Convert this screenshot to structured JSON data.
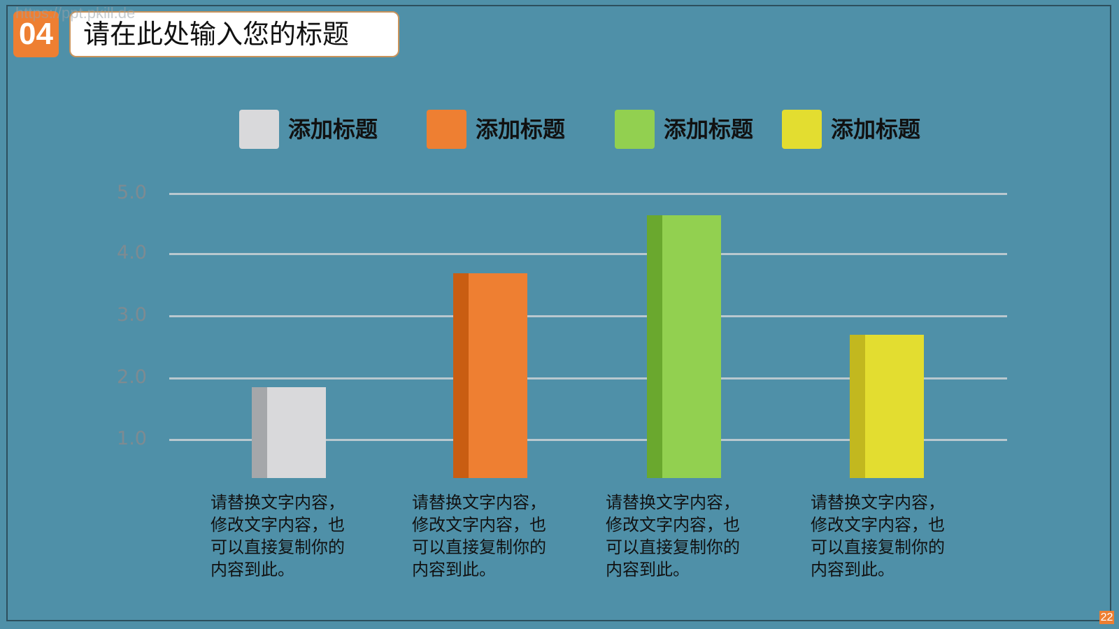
{
  "header": {
    "watermark": "https://ppt.pkill.de",
    "section_number": "04",
    "title": "请在此处输入您的标题"
  },
  "colors": {
    "background": "#4f90a8",
    "accent": "#ee7f32",
    "grid": "#b9c8cf",
    "axis_text": "#7d8b92"
  },
  "legend": [
    {
      "label": "添加标题",
      "color": "#d9d9db"
    },
    {
      "label": "添加标题",
      "color": "#ee7f32"
    },
    {
      "label": "添加标题",
      "color": "#92d050"
    },
    {
      "label": "添加标题",
      "color": "#e3dd30"
    }
  ],
  "chart_data": {
    "type": "bar",
    "title": "",
    "xlabel": "",
    "ylabel": "",
    "categories": [
      "添加标题",
      "添加标题",
      "添加标题",
      "添加标题"
    ],
    "values": [
      1.85,
      3.7,
      4.65,
      2.7
    ],
    "ylim": [
      0,
      5
    ],
    "yticks": [
      "1.0",
      "2.0",
      "3.0",
      "4.0",
      "5.0"
    ],
    "grid": true,
    "legend_position": "top",
    "series_colors": [
      {
        "face": "#d9d9db",
        "side": "#a5a7aa"
      },
      {
        "face": "#ee7f32",
        "side": "#c95d12"
      },
      {
        "face": "#92d050",
        "side": "#6aa82e"
      },
      {
        "face": "#e3dd30",
        "side": "#c2b81f"
      }
    ]
  },
  "descriptions": [
    {
      "line1": "请替换文字内容，",
      "line2": "修改文字内容，也",
      "line3": "可以直接复制你的",
      "line4": "内容到此。"
    },
    {
      "line1": "请替换文字内容，",
      "line2": "修改文字内容，也",
      "line3": "可以直接复制你的",
      "line4": "内容到此。"
    },
    {
      "line1": "请替换文字内容，",
      "line2": "修改文字内容，也",
      "line3": "可以直接复制你的",
      "line4": "内容到此。"
    },
    {
      "line1": "请替换文字内容，",
      "line2": "修改文字内容，也",
      "line3": "可以直接复制你的",
      "line4": "内容到此。"
    }
  ],
  "footer": {
    "page_number": "22"
  }
}
